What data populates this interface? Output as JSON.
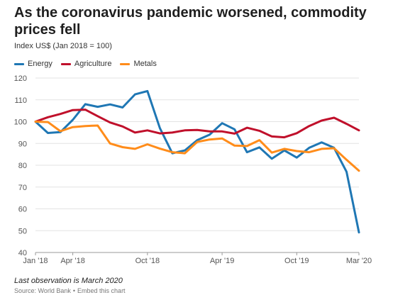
{
  "header": {
    "title": "As the coronavirus pandemic worsened, commodity prices fell",
    "subtitle": "Index US$ (Jan 2018 = 100)"
  },
  "footer": {
    "note": "Last observation is March 2020",
    "source": "Source: World Bank",
    "separator": "•",
    "embed_label": "Embed this chart"
  },
  "chart_data": {
    "type": "line",
    "title": "As the coronavirus pandemic worsened, commodity prices fell",
    "ylabel": "Index US$ (Jan 2018 = 100)",
    "ylim": [
      40,
      120
    ],
    "yticks": [
      40,
      50,
      60,
      70,
      80,
      90,
      100,
      110,
      120
    ],
    "grid": true,
    "legend_position": "top-left",
    "x": [
      "Jan 2018",
      "Feb 2018",
      "Mar 2018",
      "Apr 2018",
      "May 2018",
      "Jun 2018",
      "Jul 2018",
      "Aug 2018",
      "Sep 2018",
      "Oct 2018",
      "Nov 2018",
      "Dec 2018",
      "Jan 2019",
      "Feb 2019",
      "Mar 2019",
      "Apr 2019",
      "May 2019",
      "Jun 2019",
      "Jul 2019",
      "Aug 2019",
      "Sep 2019",
      "Oct 2019",
      "Nov 2019",
      "Dec 2019",
      "Jan 2020",
      "Feb 2020",
      "Mar 2020"
    ],
    "xtick_labels": [
      {
        "index": 0,
        "label": "Jan '18"
      },
      {
        "index": 3,
        "label": "Apr '18"
      },
      {
        "index": 9,
        "label": "Oct '18"
      },
      {
        "index": 15,
        "label": "Apr '19"
      },
      {
        "index": 21,
        "label": "Oct '19"
      },
      {
        "index": 26,
        "label": "Mar '20"
      }
    ],
    "series": [
      {
        "name": "Energy",
        "color": "#1f77b4",
        "values": [
          100,
          94.8,
          95.2,
          100.8,
          108,
          106.8,
          107.9,
          106.5,
          112.5,
          114,
          97,
          85.5,
          86.8,
          91.5,
          94,
          99.3,
          96.5,
          86,
          88.2,
          83,
          86.8,
          83.5,
          88,
          90.5,
          88,
          77,
          49.2
        ]
      },
      {
        "name": "Agriculture",
        "color": "#c0102b",
        "values": [
          100,
          102,
          103.5,
          105.3,
          105.5,
          102.5,
          99.6,
          97.8,
          95,
          96,
          94.6,
          95,
          96,
          96.2,
          95.5,
          95.5,
          94.5,
          97.2,
          95.8,
          93.2,
          92.8,
          94.7,
          98,
          100.5,
          101.8,
          99,
          96
        ]
      },
      {
        "name": "Metals",
        "color": "#ff8c1a",
        "values": [
          100,
          99.8,
          95.6,
          97.5,
          98,
          98.2,
          90,
          88.3,
          87.5,
          89.6,
          87.6,
          86,
          85.5,
          90.7,
          91.8,
          92.3,
          89,
          88.8,
          91.5,
          85.8,
          87.5,
          86.5,
          86,
          87.5,
          87.8,
          82.5,
          77.5
        ]
      }
    ]
  }
}
